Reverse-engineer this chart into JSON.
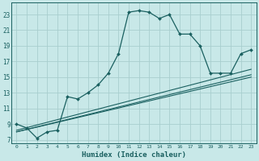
{
  "title": "",
  "xlabel": "Humidex (Indice chaleur)",
  "bg_color": "#c8e8e8",
  "grid_color": "#a8cece",
  "line_color": "#1a6060",
  "xlim": [
    -0.5,
    23.5
  ],
  "ylim": [
    6.5,
    24.5
  ],
  "yticks": [
    7,
    9,
    11,
    13,
    15,
    17,
    19,
    21,
    23
  ],
  "xticks": [
    0,
    1,
    2,
    3,
    4,
    5,
    6,
    7,
    8,
    9,
    10,
    11,
    12,
    13,
    14,
    15,
    16,
    17,
    18,
    19,
    20,
    21,
    22,
    23
  ],
  "main_x": [
    0,
    1,
    2,
    3,
    4,
    5,
    6,
    7,
    8,
    9,
    10,
    11,
    12,
    13,
    14,
    15,
    16,
    17,
    18,
    19,
    20,
    21,
    22,
    23
  ],
  "main_y": [
    9.0,
    8.5,
    7.2,
    8.0,
    8.2,
    12.5,
    12.2,
    13.0,
    14.0,
    15.5,
    18.0,
    23.3,
    23.5,
    23.3,
    22.5,
    23.0,
    20.5,
    20.5,
    19.0,
    15.5,
    15.5,
    15.5,
    18.0,
    18.5
  ],
  "line1_x": [
    0,
    23
  ],
  "line1_y": [
    8.0,
    15.3
  ],
  "line2_x": [
    0,
    23
  ],
  "line2_y": [
    8.2,
    16.0
  ],
  "line3_x": [
    0,
    23
  ],
  "line3_y": [
    8.0,
    15.0
  ]
}
